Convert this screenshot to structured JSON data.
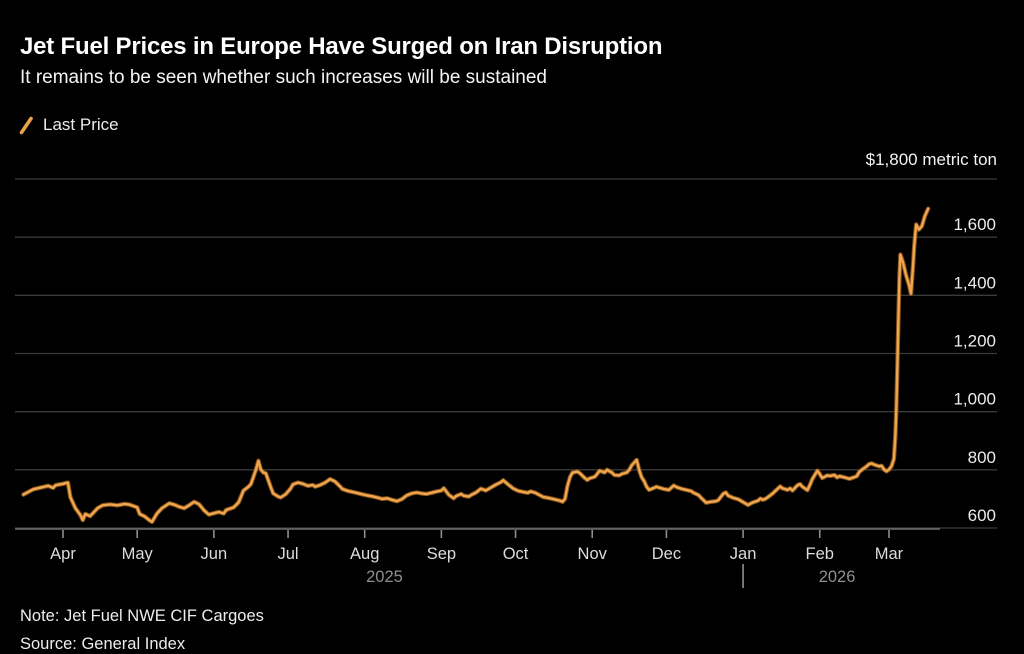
{
  "header": {
    "title": "Jet Fuel Prices in Europe Have Surged on Iran Disruption",
    "subtitle": "It remains to be seen whether such increases will be sustained"
  },
  "legend": {
    "label": "Last Price",
    "line_color": "#F0A64F"
  },
  "footer": {
    "note": "Note: Jet Fuel NWE CIF Cargoes",
    "source": "Source: General Index"
  },
  "chart_data": {
    "type": "line",
    "title": "Jet Fuel Prices in Europe Have Surged on Iran Disruption",
    "unit_label": "$1,800 metric ton",
    "grid": true,
    "legend_position": "top-left",
    "colors": {
      "line": "#F0A64F",
      "line_halo": "#9A5F1E",
      "gridline": "#3A3A3A",
      "axis": "#6E6E6E",
      "tick": "#8E8E8E",
      "y_label": "#ececec",
      "month_label": "#dcdcdc",
      "year_label": "#8f8f8f",
      "background": "#000000"
    },
    "y_axis": {
      "range": [
        600,
        1800
      ],
      "grid_values": [
        1800,
        1600,
        1400,
        1200,
        1000,
        800,
        600
      ],
      "ticks": [
        {
          "label": "1,600",
          "value": 1600
        },
        {
          "label": "1,400",
          "value": 1400
        },
        {
          "label": "1,200",
          "value": 1200
        },
        {
          "label": "1,000",
          "value": 1000
        },
        {
          "label": "800",
          "value": 800
        },
        {
          "label": "600",
          "value": 600
        }
      ]
    },
    "x_axis": {
      "months": [
        {
          "label": "Apr",
          "day": 0
        },
        {
          "label": "May",
          "day": 30
        },
        {
          "label": "Jun",
          "day": 61
        },
        {
          "label": "Jul",
          "day": 91
        },
        {
          "label": "Aug",
          "day": 122
        },
        {
          "label": "Sep",
          "day": 153
        },
        {
          "label": "Oct",
          "day": 183
        },
        {
          "label": "Nov",
          "day": 214
        },
        {
          "label": "Dec",
          "day": 244
        },
        {
          "label": "Jan",
          "day": 275
        },
        {
          "label": "Feb",
          "day": 306
        },
        {
          "label": "Mar",
          "day": 334
        }
      ],
      "years": [
        {
          "label": "2025",
          "day": 130
        },
        {
          "label": "2026",
          "day": 313
        }
      ],
      "year_divider_day": 275
    },
    "series": [
      {
        "name": "Last Price",
        "color": "#F0A64F",
        "points": [
          [
            -16,
            715
          ],
          [
            -12,
            733
          ],
          [
            -6,
            745
          ],
          [
            -4,
            738
          ],
          [
            -3,
            747
          ],
          [
            0,
            752
          ],
          [
            2,
            756
          ],
          [
            3,
            706
          ],
          [
            5,
            668
          ],
          [
            7,
            645
          ],
          [
            8,
            627
          ],
          [
            9,
            648
          ],
          [
            11,
            641
          ],
          [
            14,
            668
          ],
          [
            16,
            678
          ],
          [
            19,
            681
          ],
          [
            22,
            678
          ],
          [
            25,
            683
          ],
          [
            27,
            680
          ],
          [
            30,
            671
          ],
          [
            31,
            648
          ],
          [
            33,
            640
          ],
          [
            35,
            626
          ],
          [
            36,
            621
          ],
          [
            38,
            650
          ],
          [
            40,
            668
          ],
          [
            43,
            685
          ],
          [
            45,
            680
          ],
          [
            47,
            673
          ],
          [
            49,
            668
          ],
          [
            51,
            678
          ],
          [
            53,
            690
          ],
          [
            55,
            682
          ],
          [
            57,
            661
          ],
          [
            59,
            646
          ],
          [
            61,
            651
          ],
          [
            63,
            655
          ],
          [
            65,
            650
          ],
          [
            66,
            662
          ],
          [
            69,
            671
          ],
          [
            71,
            688
          ],
          [
            73,
            729
          ],
          [
            75,
            742
          ],
          [
            76,
            751
          ],
          [
            78,
            800
          ],
          [
            79,
            831
          ],
          [
            80,
            801
          ],
          [
            81,
            791
          ],
          [
            82,
            788
          ],
          [
            84,
            741
          ],
          [
            85,
            719
          ],
          [
            87,
            708
          ],
          [
            88,
            705
          ],
          [
            90,
            716
          ],
          [
            92,
            735
          ],
          [
            93,
            750
          ],
          [
            95,
            756
          ],
          [
            97,
            752
          ],
          [
            99,
            745
          ],
          [
            101,
            748
          ],
          [
            102,
            742
          ],
          [
            104,
            748
          ],
          [
            106,
            756
          ],
          [
            108,
            768
          ],
          [
            110,
            760
          ],
          [
            112,
            743
          ],
          [
            113,
            734
          ],
          [
            115,
            728
          ],
          [
            117,
            724
          ],
          [
            119,
            720
          ],
          [
            121,
            716
          ],
          [
            123,
            712
          ],
          [
            125,
            709
          ],
          [
            127,
            705
          ],
          [
            129,
            700
          ],
          [
            131,
            702
          ],
          [
            133,
            697
          ],
          [
            135,
            692
          ],
          [
            137,
            699
          ],
          [
            139,
            712
          ],
          [
            141,
            719
          ],
          [
            143,
            722
          ],
          [
            145,
            719
          ],
          [
            147,
            717
          ],
          [
            149,
            721
          ],
          [
            151,
            725
          ],
          [
            153,
            729
          ],
          [
            154,
            737
          ],
          [
            156,
            714
          ],
          [
            158,
            702
          ],
          [
            159,
            710
          ],
          [
            161,
            717
          ],
          [
            162,
            711
          ],
          [
            164,
            708
          ],
          [
            165,
            713
          ],
          [
            167,
            722
          ],
          [
            169,
            735
          ],
          [
            171,
            729
          ],
          [
            173,
            739
          ],
          [
            175,
            749
          ],
          [
            177,
            757
          ],
          [
            178,
            764
          ],
          [
            180,
            750
          ],
          [
            182,
            736
          ],
          [
            184,
            728
          ],
          [
            186,
            724
          ],
          [
            188,
            721
          ],
          [
            189,
            726
          ],
          [
            191,
            721
          ],
          [
            193,
            712
          ],
          [
            194,
            707
          ],
          [
            196,
            704
          ],
          [
            198,
            700
          ],
          [
            200,
            696
          ],
          [
            201,
            694
          ],
          [
            202,
            690
          ],
          [
            203,
            700
          ],
          [
            204,
            745
          ],
          [
            205,
            775
          ],
          [
            206,
            790
          ],
          [
            208,
            794
          ],
          [
            209,
            788
          ],
          [
            211,
            772
          ],
          [
            212,
            765
          ],
          [
            213,
            771
          ],
          [
            215,
            776
          ],
          [
            216,
            786
          ],
          [
            217,
            797
          ],
          [
            219,
            791
          ],
          [
            220,
            800
          ],
          [
            222,
            790
          ],
          [
            223,
            782
          ],
          [
            225,
            781
          ],
          [
            226,
            786
          ],
          [
            228,
            791
          ],
          [
            229,
            800
          ],
          [
            230,
            816
          ],
          [
            232,
            834
          ],
          [
            233,
            799
          ],
          [
            234,
            774
          ],
          [
            235,
            761
          ],
          [
            236,
            742
          ],
          [
            237,
            731
          ],
          [
            239,
            738
          ],
          [
            240,
            742
          ],
          [
            241,
            739
          ],
          [
            243,
            734
          ],
          [
            245,
            731
          ],
          [
            246,
            739
          ],
          [
            247,
            746
          ],
          [
            248,
            741
          ],
          [
            250,
            735
          ],
          [
            252,
            731
          ],
          [
            254,
            727
          ],
          [
            255,
            721
          ],
          [
            257,
            713
          ],
          [
            258,
            704
          ],
          [
            259,
            696
          ],
          [
            260,
            687
          ],
          [
            262,
            690
          ],
          [
            264,
            692
          ],
          [
            265,
            696
          ],
          [
            267,
            718
          ],
          [
            268,
            722
          ],
          [
            269,
            711
          ],
          [
            271,
            704
          ],
          [
            272,
            701
          ],
          [
            273,
            699
          ],
          [
            275,
            689
          ],
          [
            277,
            679
          ],
          [
            278,
            684
          ],
          [
            279,
            688
          ],
          [
            281,
            694
          ],
          [
            282,
            701
          ],
          [
            283,
            697
          ],
          [
            284,
            700
          ],
          [
            285,
            706
          ],
          [
            287,
            719
          ],
          [
            289,
            735
          ],
          [
            290,
            743
          ],
          [
            291,
            736
          ],
          [
            293,
            731
          ],
          [
            294,
            736
          ],
          [
            295,
            729
          ],
          [
            297,
            747
          ],
          [
            298,
            751
          ],
          [
            299,
            742
          ],
          [
            301,
            730
          ],
          [
            302,
            747
          ],
          [
            303,
            768
          ],
          [
            305,
            797
          ],
          [
            306,
            786
          ],
          [
            307,
            772
          ],
          [
            308,
            776
          ],
          [
            309,
            781
          ],
          [
            310,
            779
          ],
          [
            312,
            782
          ],
          [
            313,
            774
          ],
          [
            314,
            778
          ],
          [
            316,
            774
          ],
          [
            318,
            769
          ],
          [
            319,
            772
          ],
          [
            321,
            778
          ],
          [
            322,
            793
          ],
          [
            323,
            800
          ],
          [
            325,
            812
          ],
          [
            326,
            820
          ],
          [
            327,
            822
          ],
          [
            328,
            818
          ],
          [
            330,
            812
          ],
          [
            331,
            814
          ],
          [
            332,
            801
          ],
          [
            333,
            795
          ],
          [
            334,
            801
          ],
          [
            335,
            812
          ],
          [
            336,
            838
          ],
          [
            336.6,
            920
          ],
          [
            337,
            1020
          ],
          [
            337.4,
            1160
          ],
          [
            337.8,
            1320
          ],
          [
            338.2,
            1460
          ],
          [
            338.6,
            1540
          ],
          [
            339.7,
            1512
          ],
          [
            340.9,
            1470
          ],
          [
            342.1,
            1436
          ],
          [
            342.9,
            1406
          ],
          [
            343.7,
            1500
          ],
          [
            344.2,
            1568
          ],
          [
            344.6,
            1608
          ],
          [
            345,
            1644
          ],
          [
            346.1,
            1626
          ],
          [
            347.3,
            1638
          ],
          [
            348.5,
            1672
          ],
          [
            349.8,
            1698
          ]
        ]
      }
    ]
  }
}
